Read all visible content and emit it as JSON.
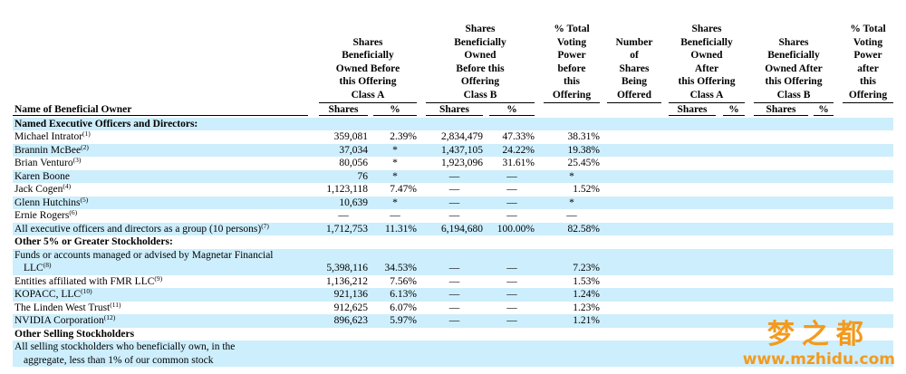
{
  "table": {
    "name_header": "Name of Beneficial Owner",
    "groups": [
      {
        "lines": [
          "Shares",
          "Beneficially",
          "Owned Before",
          "this Offering",
          "Class A"
        ],
        "sub": [
          "Shares",
          "%"
        ]
      },
      {
        "lines": [
          "Shares",
          "Beneficially",
          "Owned",
          "Before this",
          "Offering",
          "Class B"
        ],
        "sub": [
          "Shares",
          "%"
        ]
      },
      {
        "lines": [
          "% Total",
          "Voting",
          "Power",
          "before",
          "this",
          "Offering"
        ],
        "sub": []
      },
      {
        "lines": [
          "Number",
          "of",
          "Shares",
          "Being",
          "Offered"
        ],
        "sub": []
      },
      {
        "lines": [
          "Shares",
          "Beneficially",
          "Owned",
          "After",
          "this Offering",
          "Class A"
        ],
        "sub": [
          "Shares",
          "%"
        ]
      },
      {
        "lines": [
          "Shares",
          "Beneficially",
          "Owned After",
          "this Offering",
          "Class B"
        ],
        "sub": [
          "Shares",
          "%"
        ]
      },
      {
        "lines": [
          "% Total",
          "Voting",
          "Power",
          "after",
          "this",
          "Offering"
        ],
        "sub": []
      }
    ],
    "rows": [
      {
        "name": [
          "Named Executive Officers and Directors:"
        ],
        "section": true
      },
      {
        "name": [
          "Michael Intrator"
        ],
        "note": "(1)",
        "cells": [
          "359,081",
          "2.39%",
          "2,834,479",
          "47.33%",
          "38.31%"
        ]
      },
      {
        "name": [
          "Brannin McBee"
        ],
        "note": "(2)",
        "cells": [
          "37,034",
          "*",
          "1,437,105",
          "24.22%",
          "19.38%"
        ]
      },
      {
        "name": [
          "Brian Venturo"
        ],
        "note": "(3)",
        "cells": [
          "80,056",
          "*",
          "1,923,096",
          "31.61%",
          "25.45%"
        ]
      },
      {
        "name": [
          "Karen Boone"
        ],
        "cells": [
          "76",
          "*",
          "—",
          "—",
          "*"
        ]
      },
      {
        "name": [
          "Jack Cogen"
        ],
        "note": "(4)",
        "cells": [
          "1,123,118",
          "7.47%",
          "—",
          "—",
          "1.52%"
        ]
      },
      {
        "name": [
          "Glenn Hutchins"
        ],
        "note": "(5)",
        "cells": [
          "10,639",
          "*",
          "—",
          "—",
          "*"
        ]
      },
      {
        "name": [
          "Ernie Rogers"
        ],
        "note": "(6)",
        "cells": [
          "—",
          "—",
          "—",
          "—",
          "—"
        ]
      },
      {
        "name": [
          "All executive officers and directors as a group (10 persons)"
        ],
        "note": "(7)",
        "cells": [
          "1,712,753",
          "11.31%",
          "6,194,680",
          "100.00%",
          "82.58%"
        ]
      },
      {
        "name": [
          "Other 5% or Greater Stockholders:"
        ],
        "section": true
      },
      {
        "name": [
          "Funds or accounts managed or advised by Magnetar Financial",
          "LLC"
        ],
        "note": "(8)",
        "cells": [
          "5,398,116",
          "34.53%",
          "—",
          "—",
          "7.23%"
        ]
      },
      {
        "name": [
          "Entities affiliated with FMR LLC"
        ],
        "note": "(9)",
        "cells": [
          "1,136,212",
          "7.56%",
          "—",
          "—",
          "1.53%"
        ]
      },
      {
        "name": [
          "KOPACC, LLC"
        ],
        "note": "(10)",
        "cells": [
          "921,136",
          "6.13%",
          "—",
          "—",
          "1.24%"
        ]
      },
      {
        "name": [
          "The Linden West Trust"
        ],
        "note": "(11)",
        "cells": [
          "912,625",
          "6.07%",
          "—",
          "—",
          "1.23%"
        ]
      },
      {
        "name": [
          "NVIDIA Corporation"
        ],
        "note": "(12)",
        "cells": [
          "896,623",
          "5.97%",
          "—",
          "—",
          "1.21%"
        ]
      },
      {
        "name": [
          "Other Selling Stockholders"
        ],
        "section": true
      },
      {
        "name": [
          "All selling stockholders who beneficially own, in the",
          "aggregate, less than 1% of our common stock"
        ]
      }
    ]
  },
  "watermark": {
    "brand": "梦之都",
    "url": "www.mzhidu.com"
  }
}
